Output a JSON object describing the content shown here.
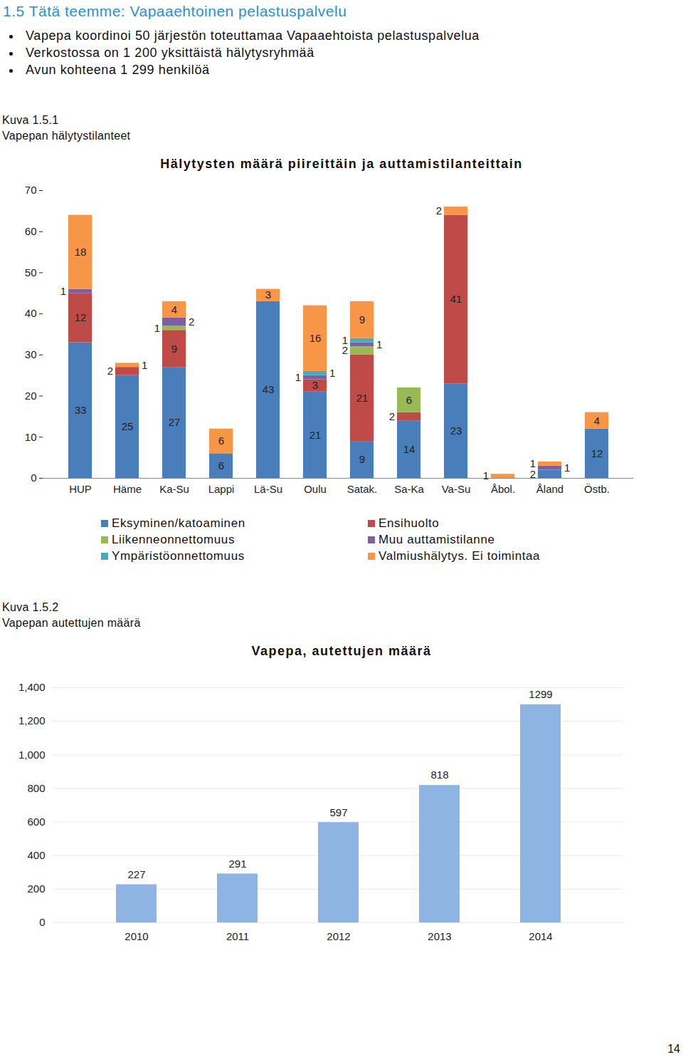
{
  "document": {
    "heading": "1.5 Tätä teemme: Vapaaehtoinen pelastuspalvelu",
    "bullets": [
      "Vapepa koordinoi 50 järjestön toteuttamaa Vapaaehtoista pelastuspalvelua",
      "Verkostossa on 1 200 yksittäistä hälytysryhmää",
      "Avun kohteena 1 299 henkilöä"
    ],
    "figures": [
      {
        "label": "Kuva 1.5.1",
        "caption": "Vapepan hälytystilanteet"
      },
      {
        "label": "Kuva 1.5.2",
        "caption": "Vapepan autettujen määrä"
      }
    ],
    "page_number": "14"
  },
  "chart_data": [
    {
      "type": "bar",
      "stacked": true,
      "title": "Hälytysten määrä piireittäin ja auttamistilanteittain",
      "categories": [
        "HUP",
        "Häme",
        "Ka-Su",
        "Lappi",
        "Lä-Su",
        "Oulu",
        "Satak.",
        "Sa-Ka",
        "Va-Su",
        "Åbol.",
        "Åland",
        "Östb."
      ],
      "series": [
        {
          "name": "Eksyminen/katoaminen",
          "color": "#4a7ebb",
          "values": [
            33,
            25,
            27,
            6,
            43,
            21,
            9,
            14,
            23,
            null,
            2,
            12
          ]
        },
        {
          "name": "Ensihuolto",
          "color": "#be4b48",
          "values": [
            12,
            2,
            9,
            null,
            null,
            3,
            21,
            2,
            41,
            null,
            null,
            null
          ]
        },
        {
          "name": "Liikenneonnettomuus",
          "color": "#98b954",
          "values": [
            null,
            null,
            1,
            null,
            null,
            null,
            2,
            6,
            null,
            null,
            null,
            null
          ]
        },
        {
          "name": "Muu auttamistilanne",
          "color": "#7d60a0",
          "values": [
            1,
            null,
            2,
            null,
            null,
            1,
            1,
            null,
            null,
            null,
            1,
            null
          ]
        },
        {
          "name": "Ympäristöonnettomuus",
          "color": "#46aac5",
          "values": [
            null,
            null,
            null,
            null,
            null,
            1,
            1,
            null,
            null,
            null,
            null,
            null
          ]
        },
        {
          "name": "Valmiushälytys. Ei toimintaa",
          "color": "#f79646",
          "values": [
            18,
            1,
            4,
            6,
            3,
            16,
            9,
            null,
            2,
            1,
            1,
            4
          ]
        }
      ],
      "ylim": [
        0,
        70
      ],
      "yticks": [
        0,
        10,
        20,
        30,
        40,
        50,
        60,
        70
      ],
      "grid": false,
      "data_labels": true,
      "legend": "bottom"
    },
    {
      "type": "bar",
      "title": "Vapepa, autettujen määrä",
      "categories": [
        "2010",
        "2011",
        "2012",
        "2013",
        "2014"
      ],
      "values": [
        227,
        291,
        597,
        818,
        1299
      ],
      "color": "#8eb4e3",
      "ylim": [
        0,
        1400
      ],
      "yticks": [
        0,
        200,
        400,
        600,
        800,
        1000,
        1200,
        1400
      ],
      "grid": true,
      "data_labels": true
    }
  ]
}
